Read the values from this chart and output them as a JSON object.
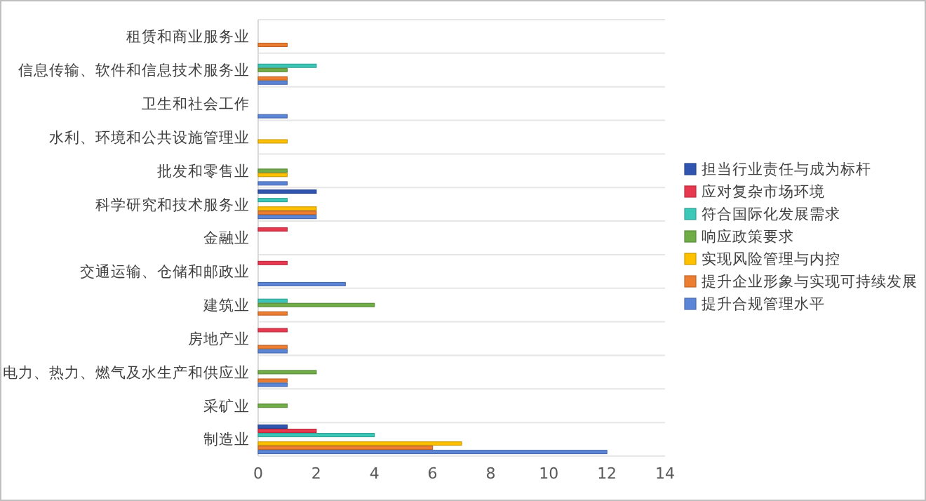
{
  "chart_data": {
    "type": "bar",
    "orientation": "horizontal",
    "categories": [
      "租赁和商业服务业",
      "信息传输、软件和信息技术服务业",
      "卫生和社会工作",
      "水利、环境和公共设施管理业",
      "批发和零售业",
      "科学研究和技术服务业",
      "金融业",
      "交通运输、仓储和邮政业",
      "建筑业",
      "房地产业",
      "电力、热力、燃气及水生产和供应业",
      "采矿业",
      "制造业"
    ],
    "series": [
      {
        "name": "担当行业责任与成为标杆",
        "color": "#2f55b0",
        "values": [
          0,
          0,
          0,
          0,
          0,
          2,
          0,
          0,
          0,
          0,
          0,
          0,
          1
        ]
      },
      {
        "name": "应对复杂市场环境",
        "color": "#e8384f",
        "values": [
          0,
          0,
          0,
          0,
          0,
          0,
          1,
          1,
          0,
          1,
          0,
          0,
          2
        ]
      },
      {
        "name": "符合国际化发展需求",
        "color": "#3cc8b8",
        "values": [
          0,
          2,
          0,
          0,
          0,
          1,
          0,
          0,
          1,
          0,
          0,
          0,
          4
        ]
      },
      {
        "name": "响应政策要求",
        "color": "#70ad47",
        "values": [
          0,
          1,
          0,
          0,
          1,
          0,
          0,
          0,
          4,
          0,
          2,
          1,
          0
        ]
      },
      {
        "name": "实现风险管理与内控",
        "color": "#ffc000",
        "values": [
          0,
          0,
          0,
          1,
          1,
          2,
          0,
          0,
          0,
          0,
          0,
          0,
          7
        ]
      },
      {
        "name": "提升企业形象与实现可持续发展",
        "color": "#ed7d31",
        "values": [
          1,
          1,
          0,
          0,
          0,
          2,
          0,
          0,
          1,
          1,
          1,
          0,
          6
        ]
      },
      {
        "name": "提升合规管理水平",
        "color": "#5b85d6",
        "values": [
          0,
          1,
          1,
          0,
          1,
          2,
          0,
          3,
          0,
          1,
          1,
          0,
          12
        ]
      }
    ],
    "xlim": [
      0,
      14
    ],
    "xticks": [
      0,
      2,
      4,
      6,
      8,
      10,
      12,
      14
    ],
    "grid": "y",
    "legend": "right"
  }
}
